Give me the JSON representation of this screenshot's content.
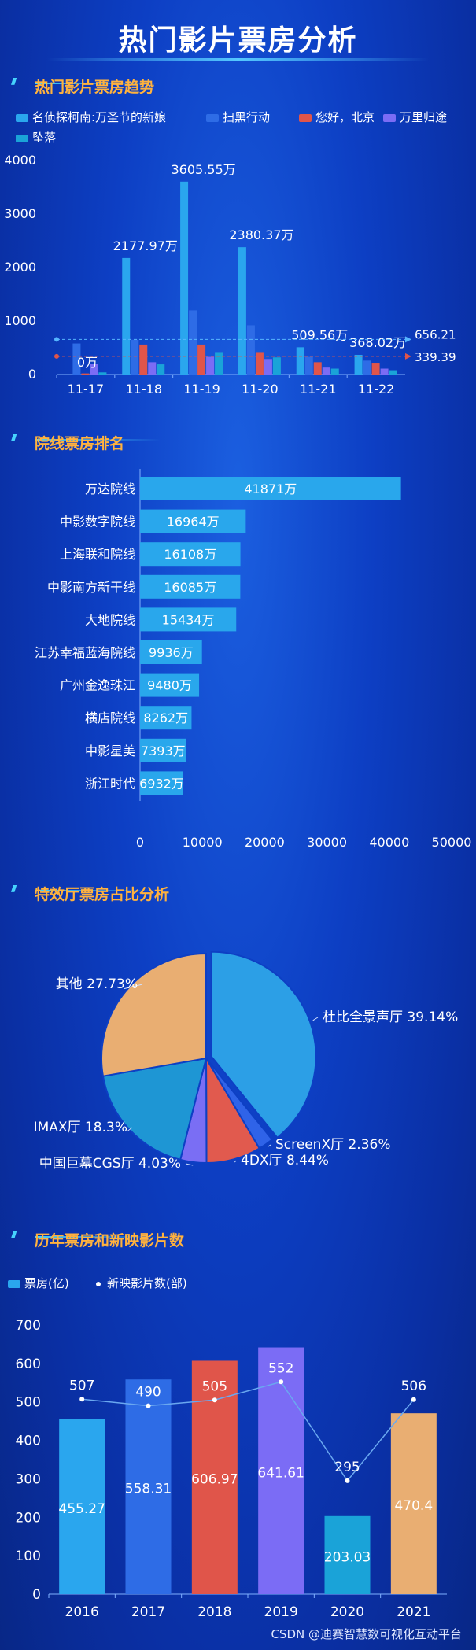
{
  "title": "热门影片票房分析",
  "credit": "CSDN @迪赛智慧数可视化互动平台",
  "sections": {
    "trend": "热门影片票房趋势",
    "ranking": "院线票房排名",
    "special": "特效厅票房占比分析",
    "yearly": "历年票房和新映影片数"
  },
  "chart_data": [
    {
      "type": "bar",
      "id": "trend",
      "categories": [
        "11-17",
        "11-18",
        "11-19",
        "11-20",
        "11-21",
        "11-22"
      ],
      "ylim": [
        0,
        4000
      ],
      "yticks": [
        0,
        1000,
        2000,
        3000,
        4000
      ],
      "colors": [
        "#2aa6ee",
        "#2e6ce6",
        "#e0554a",
        "#7b6cf5",
        "#1aa3d8"
      ],
      "series": [
        {
          "name": "名侦探柯南:万圣节的新娘",
          "values": [
            0,
            2177.97,
            3605.55,
            2380.37,
            509.56,
            368.02
          ]
        },
        {
          "name": "扫黑行动",
          "values": [
            580,
            650,
            1200,
            920,
            330,
            260
          ]
        },
        {
          "name": "您好，北京",
          "values": [
            20,
            560,
            560,
            420,
            230,
            220
          ]
        },
        {
          "name": "万里归途",
          "values": [
            200,
            230,
            330,
            290,
            130,
            110
          ]
        },
        {
          "name": "坠落",
          "values": [
            40,
            190,
            420,
            320,
            110,
            80
          ]
        }
      ],
      "data_labels": [
        {
          "category": "11-17",
          "label": "0万"
        },
        {
          "category": "11-18",
          "label": "2177.97万"
        },
        {
          "category": "11-19",
          "label": "3605.55万"
        },
        {
          "category": "11-20",
          "label": "2380.37万"
        },
        {
          "category": "11-21",
          "label": "509.56万"
        },
        {
          "category": "11-22",
          "label": "368.02万"
        }
      ],
      "mark_lines": [
        {
          "value": 656.21,
          "label": "656.21",
          "color": "#55b6ff"
        },
        {
          "value": 339.39,
          "label": "339.39",
          "color": "#e0554a"
        }
      ]
    },
    {
      "type": "bar",
      "id": "ranking",
      "orientation": "horizontal",
      "categories": [
        "万达院线",
        "中影数字院线",
        "上海联和院线",
        "中影南方新干线",
        "大地院线",
        "江苏幸福蓝海院线",
        "广州金逸珠江",
        "横店院线",
        "中影星美",
        "浙江时代"
      ],
      "values": [
        41871,
        16964,
        16108,
        16085,
        15434,
        9936,
        9480,
        8262,
        7393,
        6932
      ],
      "labels": [
        "41871万",
        "16964万",
        "16108万",
        "16085万",
        "15434万",
        "9936万",
        "9480万",
        "8262万",
        "7393万",
        "6932万"
      ],
      "xlim": [
        0,
        50000
      ],
      "xticks": [
        0,
        10000,
        20000,
        30000,
        40000,
        50000
      ],
      "color": "#29a7ec"
    },
    {
      "type": "pie",
      "id": "special",
      "slices": [
        {
          "name": "杜比全景声厅",
          "value": 39.14,
          "label": "杜比全景声厅 39.14%",
          "color": "#2c9fe6"
        },
        {
          "name": "ScreenX厅",
          "value": 2.36,
          "label": "ScreenX厅 2.36%",
          "color": "#2f63e8"
        },
        {
          "name": "4DX厅",
          "value": 8.44,
          "label": "4DX厅 8.44%",
          "color": "#e15a4e"
        },
        {
          "name": "中国巨幕CGS厅",
          "value": 4.03,
          "label": "中国巨幕CGS厅 4.03%",
          "color": "#7a6ef4"
        },
        {
          "name": "IMAX厅",
          "value": 18.3,
          "label": "IMAX厅 18.3%",
          "color": "#1e96d4"
        },
        {
          "name": "其他",
          "value": 27.73,
          "label": "其他 27.73%",
          "color": "#e9ae72"
        }
      ]
    },
    {
      "type": "bar",
      "id": "yearly",
      "categories": [
        "2016",
        "2017",
        "2018",
        "2019",
        "2020",
        "2021"
      ],
      "ylim": [
        0,
        700
      ],
      "yticks": [
        0,
        100,
        200,
        300,
        400,
        500,
        600,
        700
      ],
      "legend": [
        "票房(亿)",
        "新映影片数(部)"
      ],
      "series": [
        {
          "name": "票房(亿)",
          "values": [
            455.27,
            558.31,
            606.97,
            641.61,
            203.03,
            470.4
          ],
          "labels": [
            "455.27",
            "558.31",
            "606.97",
            "641.61",
            "203.03",
            "470.4"
          ],
          "colors": [
            "#2aa6ee",
            "#2e6ce6",
            "#e0554a",
            "#7b6cf5",
            "#1aa3d8",
            "#e9ae72"
          ]
        },
        {
          "name": "新映影片数(部)",
          "type": "line",
          "values": [
            507,
            490,
            505,
            552,
            295,
            506
          ],
          "labels": [
            "507",
            "490",
            "505",
            "552",
            "295",
            "506"
          ],
          "color": "#6aa8f0"
        }
      ]
    }
  ]
}
